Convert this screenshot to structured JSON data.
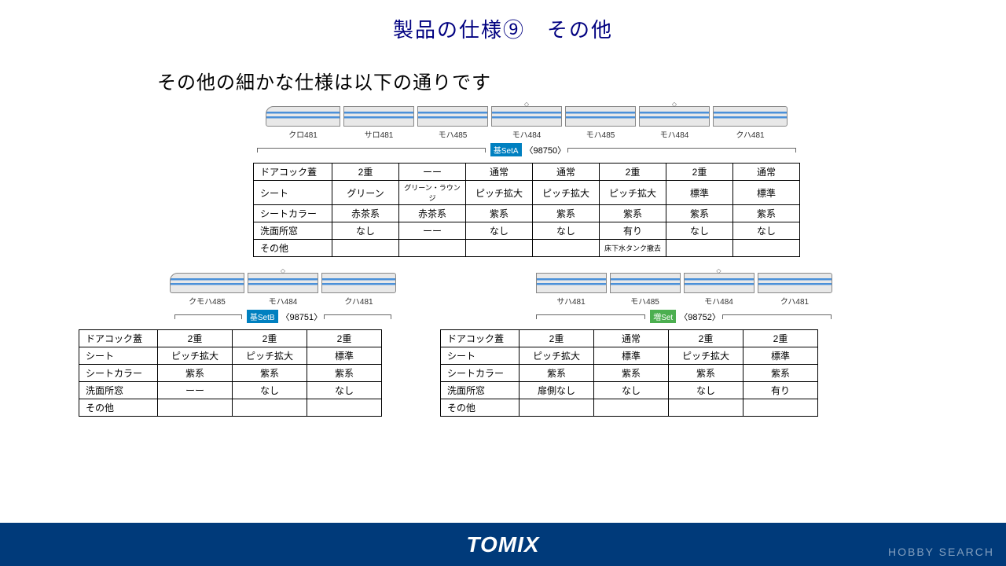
{
  "title": "製品の仕様⑨　その他",
  "subtitle": "その他の細かな仕様は以下の通りです",
  "setA": {
    "badge": "基SetA",
    "code": "〈98750〉",
    "cars": [
      "クロ481",
      "サロ481",
      "モハ485",
      "モハ484",
      "モハ485",
      "モハ484",
      "クハ481"
    ],
    "rows": [
      {
        "label": "ドアコック蓋",
        "cells": [
          "2重",
          "ーー",
          "通常",
          "通常",
          "2重",
          "2重",
          "通常"
        ]
      },
      {
        "label": "シート",
        "cells": [
          "グリーン",
          "グリーン・ラウンジ",
          "ピッチ拡大",
          "ピッチ拡大",
          "ピッチ拡大",
          "標準",
          "標準"
        ]
      },
      {
        "label": "シートカラー",
        "cells": [
          "赤茶系",
          "赤茶系",
          "紫系",
          "紫系",
          "紫系",
          "紫系",
          "紫系"
        ]
      },
      {
        "label": "洗面所窓",
        "cells": [
          "なし",
          "ーー",
          "なし",
          "なし",
          "有り",
          "なし",
          "なし"
        ]
      },
      {
        "label": "その他",
        "cells": [
          "",
          "",
          "",
          "",
          "床下水タンク撤去",
          "",
          ""
        ]
      }
    ]
  },
  "setB": {
    "badge": "基SetB",
    "code": "〈98751〉",
    "cars": [
      "クモハ485",
      "モハ484",
      "クハ481"
    ],
    "rows": [
      {
        "label": "ドアコック蓋",
        "cells": [
          "2重",
          "2重",
          "2重"
        ]
      },
      {
        "label": "シート",
        "cells": [
          "ピッチ拡大",
          "ピッチ拡大",
          "標準"
        ]
      },
      {
        "label": "シートカラー",
        "cells": [
          "紫系",
          "紫系",
          "紫系"
        ]
      },
      {
        "label": "洗面所窓",
        "cells": [
          "ーー",
          "なし",
          "なし"
        ]
      },
      {
        "label": "その他",
        "cells": [
          "",
          "",
          ""
        ]
      }
    ]
  },
  "setC": {
    "badge": "増Set",
    "code": "〈98752〉",
    "cars": [
      "サハ481",
      "モハ485",
      "モハ484",
      "クハ481"
    ],
    "rows": [
      {
        "label": "ドアコック蓋",
        "cells": [
          "2重",
          "通常",
          "2重",
          "2重"
        ]
      },
      {
        "label": "シート",
        "cells": [
          "ピッチ拡大",
          "標準",
          "ピッチ拡大",
          "標準"
        ]
      },
      {
        "label": "シートカラー",
        "cells": [
          "紫系",
          "紫系",
          "紫系",
          "紫系"
        ]
      },
      {
        "label": "洗面所窓",
        "cells": [
          "扉側なし",
          "なし",
          "なし",
          "有り"
        ]
      },
      {
        "label": "その他",
        "cells": [
          "",
          "",
          "",
          ""
        ]
      }
    ]
  },
  "footer": {
    "logo": "TOMIX",
    "watermark": "HOBBY SEARCH"
  }
}
